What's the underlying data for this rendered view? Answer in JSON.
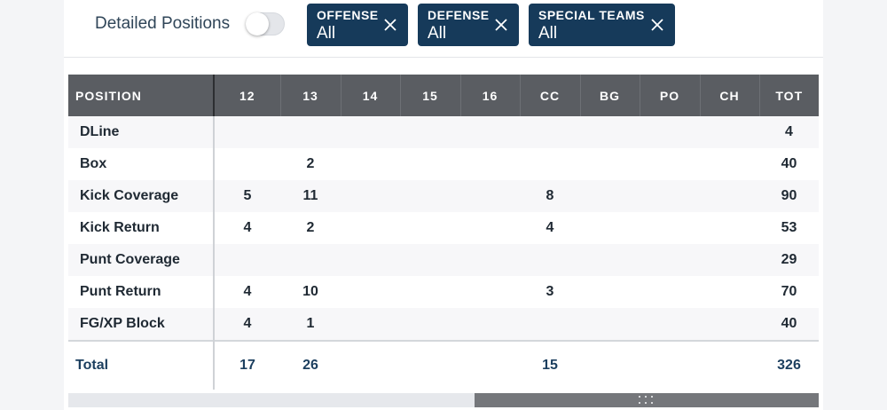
{
  "filters": {
    "toggle_label": "Detailed Positions",
    "toggle_on": false,
    "chips": [
      {
        "title": "OFFENSE",
        "value": "All"
      },
      {
        "title": "DEFENSE",
        "value": "All"
      },
      {
        "title": "SPECIAL TEAMS",
        "value": "All"
      }
    ]
  },
  "table": {
    "headers": [
      "POSITION",
      "12",
      "13",
      "14",
      "15",
      "16",
      "CC",
      "BG",
      "PO",
      "CH",
      "TOT"
    ],
    "rows": [
      [
        "DLine",
        "",
        "",
        "",
        "",
        "",
        "",
        "",
        "",
        "",
        "4"
      ],
      [
        "Box",
        "",
        "2",
        "",
        "",
        "",
        "",
        "",
        "",
        "",
        "40"
      ],
      [
        "Kick Coverage",
        "5",
        "11",
        "",
        "",
        "",
        "8",
        "",
        "",
        "",
        "90"
      ],
      [
        "Kick Return",
        "4",
        "2",
        "",
        "",
        "",
        "4",
        "",
        "",
        "",
        "53"
      ],
      [
        "Punt Coverage",
        "",
        "",
        "",
        "",
        "",
        "",
        "",
        "",
        "",
        "29"
      ],
      [
        "Punt Return",
        "4",
        "10",
        "",
        "",
        "",
        "3",
        "",
        "",
        "",
        "70"
      ],
      [
        "FG/XP Block",
        "4",
        "1",
        "",
        "",
        "",
        "",
        "",
        "",
        "",
        "40"
      ]
    ],
    "totals": [
      "Total",
      "17",
      "26",
      "",
      "",
      "",
      "15",
      "",
      "",
      "",
      "326"
    ]
  },
  "scrollbar": {
    "position_fraction": 0.54,
    "visible_fraction": 0.46
  },
  "colors": {
    "chip_bg": "#163a5a",
    "header_bg": "#5a5d62",
    "total_text": "#1c3f5f"
  }
}
